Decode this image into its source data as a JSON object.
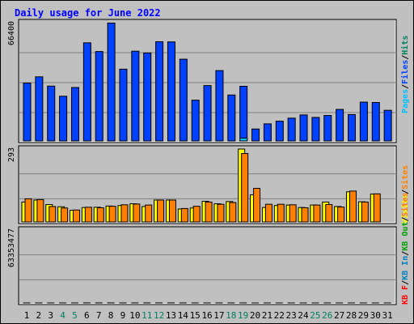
{
  "title": "Daily usage for June 2022",
  "colors": {
    "background": "#C0C0C0",
    "plot": "#C0C0C0",
    "title": "#0000FF",
    "hits": "#00805C",
    "files": "#0040FF",
    "pages": "#00C0FF",
    "visits": "#FFFF00",
    "sites": "#FF8000",
    "kb_f": "#FF0000",
    "kb_in": "#0080C0",
    "kb_out": "#00A000",
    "weekday": "#000000",
    "weekend": "#00805C"
  },
  "chart_data": [
    {
      "type": "bar",
      "name": "hits-files-pages",
      "ymax_label": "66400",
      "ylim": [
        0,
        66400
      ],
      "categories": [
        "1",
        "2",
        "3",
        "4",
        "5",
        "6",
        "7",
        "8",
        "9",
        "10",
        "11",
        "12",
        "13",
        "14",
        "15",
        "16",
        "17",
        "18",
        "19",
        "20",
        "21",
        "22",
        "23",
        "24",
        "25",
        "26",
        "27",
        "28",
        "29",
        "30",
        "31"
      ],
      "legend": [
        "Pages",
        "/",
        "Files",
        "/",
        "Hits"
      ],
      "series": [
        {
          "name": "Hits",
          "values": [
            null,
            null,
            null,
            null,
            null,
            null,
            null,
            null,
            null,
            null,
            null,
            null,
            null,
            null,
            null,
            null,
            null,
            null,
            null,
            null,
            null,
            null,
            null,
            null,
            null,
            null,
            null,
            null,
            null,
            null,
            null
          ]
        },
        {
          "name": "Files",
          "values": [
            32500,
            36000,
            30800,
            25100,
            30000,
            55100,
            50200,
            66200,
            40300,
            50400,
            49400,
            55700,
            55600,
            45900,
            22900,
            31100,
            39500,
            25800,
            30700,
            6700,
            9600,
            11100,
            12800,
            14600,
            13200,
            14300,
            17700,
            14800,
            21800,
            21600,
            17200
          ]
        },
        {
          "name": "Pages",
          "values": [
            null,
            null,
            null,
            null,
            null,
            null,
            null,
            null,
            null,
            null,
            null,
            null,
            null,
            null,
            null,
            null,
            null,
            null,
            1600,
            null,
            null,
            null,
            null,
            null,
            null,
            null,
            null,
            null,
            null,
            null,
            null
          ]
        }
      ]
    },
    {
      "type": "bar",
      "name": "visits-sites",
      "ymax_label": "293",
      "ylim": [
        0,
        293
      ],
      "categories": [
        "1",
        "2",
        "3",
        "4",
        "5",
        "6",
        "7",
        "8",
        "9",
        "10",
        "11",
        "12",
        "13",
        "14",
        "15",
        "16",
        "17",
        "18",
        "19",
        "20",
        "21",
        "22",
        "23",
        "24",
        "25",
        "26",
        "27",
        "28",
        "29",
        "30",
        "31"
      ],
      "legend": [
        "Visits",
        "/",
        "Sites"
      ],
      "series": [
        {
          "name": "Visits",
          "values": [
            80,
            88,
            70,
            61,
            47,
            58,
            59,
            64,
            66,
            73,
            62,
            88,
            88,
            52,
            56,
            83,
            73,
            82,
            293,
            109,
            58,
            66,
            68,
            58,
            68,
            80,
            62,
            121,
            81,
            112,
            null
          ]
        },
        {
          "name": "Sites",
          "values": [
            93,
            90,
            62,
            56,
            48,
            59,
            57,
            63,
            69,
            72,
            68,
            88,
            88,
            54,
            63,
            80,
            71,
            78,
            275,
            135,
            71,
            71,
            69,
            57,
            68,
            70,
            60,
            124,
            80,
            113,
            null
          ]
        }
      ]
    },
    {
      "type": "bar",
      "name": "kbytes",
      "ymax_label": "63353477",
      "ylim": [
        0,
        63353477
      ],
      "categories": [
        "1",
        "2",
        "3",
        "4",
        "5",
        "6",
        "7",
        "8",
        "9",
        "10",
        "11",
        "12",
        "13",
        "14",
        "15",
        "16",
        "17",
        "18",
        "19",
        "20",
        "21",
        "22",
        "23",
        "24",
        "25",
        "26",
        "27",
        "28",
        "29",
        "30",
        "31"
      ],
      "legend": [
        "KB F",
        "/",
        "KB In",
        "/",
        "KB Out",
        "/",
        "Sites"
      ],
      "series": [
        {
          "name": "KB F",
          "values": [
            32700,
            34500,
            25200,
            20900,
            27700,
            55700,
            57100,
            69900,
            41200,
            44500,
            56600,
            61300,
            54600,
            38900,
            16300,
            23100,
            33000,
            20400,
            23100,
            3100,
            6600,
            9400,
            12700,
            11700,
            12900,
            11300,
            15100,
            10000,
            14400,
            16000,
            10400
          ]
        }
      ]
    }
  ]
}
